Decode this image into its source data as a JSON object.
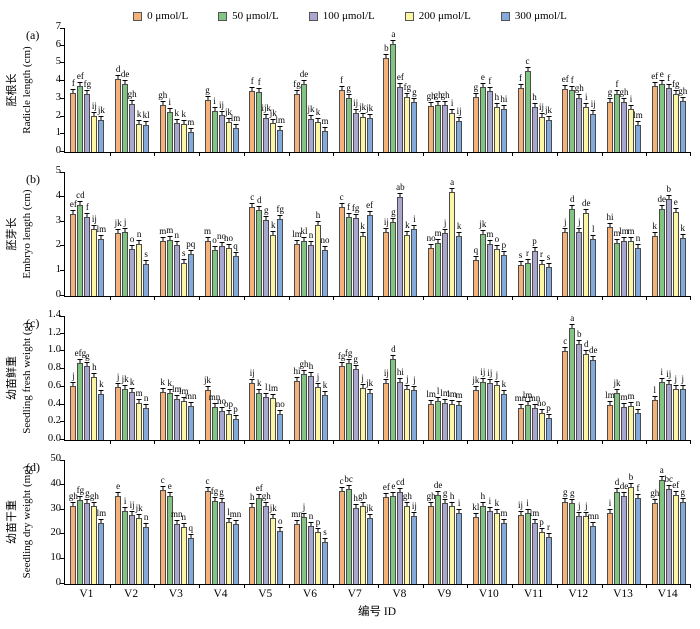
{
  "legend": {
    "items": [
      {
        "label": "0 μmol/L",
        "color": "#F4B27A"
      },
      {
        "label": "50 μmol/L",
        "color": "#82C482"
      },
      {
        "label": "100 μmol/L",
        "color": "#A9A6D0"
      },
      {
        "label": "200 μmol/L",
        "color": "#FBF6A4"
      },
      {
        "label": "300 μmol/L",
        "color": "#84A9DB"
      }
    ]
  },
  "x_axis": {
    "label": "编号 ID",
    "categories": [
      "V1",
      "V2",
      "V3",
      "V4",
      "V5",
      "V6",
      "V7",
      "V8",
      "V9",
      "V10",
      "V11",
      "V12",
      "V13",
      "V14"
    ]
  },
  "chart_data": [
    {
      "type": "bar",
      "tag": "(a)",
      "ylabel_cn": "胚根长",
      "ylabel_en": "Radicle length (cm)",
      "ylim": [
        0,
        7
      ],
      "ytick_step": 1,
      "ydecimals": 0,
      "categories": [
        "V1",
        "V2",
        "V3",
        "V4",
        "V5",
        "V6",
        "V7",
        "V8",
        "V9",
        "V10",
        "V11",
        "V12",
        "V13",
        "V14"
      ],
      "series": [
        {
          "name": "0 μmol/L",
          "values": [
            3.35,
            4.1,
            2.65,
            2.95,
            3.45,
            3.3,
            3.5,
            5.3,
            2.6,
            3.1,
            3.6,
            3.55,
            2.8,
            3.7
          ],
          "letters": [
            "f",
            "d",
            "gh",
            "g",
            "f",
            "fg",
            "f",
            "b",
            "gh",
            "g",
            "f",
            "ef",
            "g",
            "ef"
          ]
        },
        {
          "name": "50 μmol/L",
          "values": [
            3.75,
            3.85,
            2.25,
            2.3,
            3.4,
            3.85,
            3.05,
            6.1,
            2.65,
            3.65,
            4.55,
            3.5,
            3.3,
            3.85
          ],
          "letters": [
            "ef",
            "de",
            "i",
            "i",
            "f",
            "de",
            "g",
            "a",
            "gh",
            "e",
            "c",
            "f",
            "f",
            "e"
          ]
        },
        {
          "name": "100 μmol/L",
          "values": [
            3.25,
            2.7,
            1.65,
            2.1,
            1.9,
            1.85,
            2.2,
            3.65,
            2.65,
            3.45,
            2.55,
            3.05,
            2.8,
            3.6
          ],
          "letters": [
            "fg",
            "gh",
            "k",
            "ij",
            "ijk",
            "jk",
            "ij",
            "ef",
            "gh",
            "f",
            "h",
            "gh",
            "gh",
            "f"
          ]
        },
        {
          "name": "200 μmol/L",
          "values": [
            2.05,
            1.6,
            1.6,
            1.7,
            1.65,
            1.7,
            1.95,
            3.1,
            2.2,
            2.55,
            2.0,
            2.55,
            2.45,
            3.3
          ],
          "letters": [
            "ij",
            "k",
            "k",
            "jk",
            "jk",
            "k",
            "jk",
            "fg",
            "i",
            "h",
            "ij",
            "i",
            "i",
            "fg"
          ]
        },
        {
          "name": "300 μmol/L",
          "values": [
            1.8,
            1.5,
            1.15,
            1.35,
            1.25,
            1.2,
            1.9,
            2.85,
            1.75,
            2.45,
            1.8,
            2.15,
            1.5,
            2.9
          ],
          "letters": [
            "jk",
            "kl",
            "m",
            "lm",
            "lm",
            "m",
            "jk",
            "g",
            "ij",
            "hi",
            "jk",
            "ij",
            "lm",
            "gh"
          ]
        }
      ]
    },
    {
      "type": "bar",
      "tag": "(b)",
      "ylabel_cn": "胚芽长",
      "ylabel_en": "Embryo length (cm)",
      "ylim": [
        0,
        5
      ],
      "ytick_step": 1,
      "ydecimals": 0,
      "categories": [
        "V1",
        "V2",
        "V3",
        "V4",
        "V5",
        "V6",
        "V7",
        "V8",
        "V9",
        "V10",
        "V11",
        "V12",
        "V13",
        "V14"
      ],
      "series": [
        {
          "name": "0 μmol/L",
          "values": [
            3.3,
            2.55,
            2.2,
            2.2,
            3.6,
            2.1,
            3.6,
            2.6,
            1.95,
            1.45,
            1.25,
            2.6,
            2.8,
            2.4
          ],
          "letters": [
            "ef",
            "jk",
            "m",
            "m",
            "c",
            "lm",
            "c",
            "ij",
            "no",
            "q",
            "s",
            "j",
            "hi",
            "k"
          ]
        },
        {
          "name": "50 μmol/L",
          "values": [
            3.65,
            2.6,
            2.25,
            1.85,
            3.45,
            2.2,
            3.2,
            3.0,
            2.15,
            2.5,
            1.35,
            3.5,
            2.15,
            3.5
          ],
          "letters": [
            "cd",
            "j",
            "m",
            "o",
            "d",
            "kl",
            "f",
            "g",
            "m",
            "jk",
            "r",
            "d",
            "m",
            "de"
          ]
        },
        {
          "name": "100 μmol/L",
          "values": [
            3.2,
            1.9,
            2.05,
            2.0,
            3.05,
            2.05,
            3.15,
            4.0,
            2.55,
            2.1,
            1.8,
            2.6,
            2.2,
            3.9
          ],
          "letters": [
            "f",
            "o",
            "n",
            "no",
            "g",
            "n",
            "fg",
            "ab",
            "j",
            "m",
            "p",
            "j",
            "lm",
            "b"
          ]
        },
        {
          "name": "200 μmol/L",
          "values": [
            2.7,
            2.1,
            1.35,
            1.95,
            2.45,
            2.85,
            2.4,
            2.45,
            4.2,
            1.9,
            1.3,
            3.35,
            2.2,
            3.4
          ],
          "letters": [
            "ij",
            "n",
            "s",
            "no",
            "k",
            "h",
            "k",
            "k",
            "a",
            "o",
            "r",
            "de",
            "m",
            "e"
          ]
        },
        {
          "name": "300 μmol/L",
          "values": [
            2.3,
            1.3,
            1.7,
            1.6,
            3.1,
            1.85,
            3.25,
            2.7,
            2.4,
            1.65,
            1.15,
            2.3,
            1.95,
            2.35
          ],
          "letters": [
            "lm",
            "s",
            "pq",
            "q",
            "fg",
            "no",
            "ef",
            "i",
            "k",
            "p",
            "s",
            "l",
            "n",
            "k"
          ]
        }
      ]
    },
    {
      "type": "bar",
      "tag": "(c)",
      "ylabel_cn": "幼苗鲜重",
      "ylabel_en": "Seedling fresh weight (g)",
      "ylim": [
        0,
        1.4
      ],
      "ytick_step": 0.2,
      "ydecimals": 1,
      "categories": [
        "V1",
        "V2",
        "V3",
        "V4",
        "V5",
        "V6",
        "V7",
        "V8",
        "V9",
        "V10",
        "V11",
        "V12",
        "V13",
        "V14"
      ],
      "series": [
        {
          "name": "0 μmol/L",
          "values": [
            0.61,
            0.6,
            0.545,
            0.57,
            0.64,
            0.67,
            0.84,
            0.64,
            0.41,
            0.56,
            0.36,
            1.0,
            0.4,
            0.45
          ],
          "letters": [
            "j",
            "j",
            "k",
            "jk",
            "ij",
            "hi",
            "fg",
            "ij",
            "lm",
            "jk",
            "mn",
            "c",
            "lm",
            "l"
          ]
        },
        {
          "name": "50 μmol/L",
          "values": [
            0.87,
            0.575,
            0.53,
            0.37,
            0.53,
            0.74,
            0.87,
            0.92,
            0.44,
            0.65,
            0.4,
            1.27,
            0.53,
            0.65
          ],
          "letters": [
            "efg",
            "jk",
            "k",
            "mn",
            "k",
            "gh",
            "fg",
            "d",
            "l",
            "ij",
            "lm",
            "a",
            "jk",
            "i"
          ]
        },
        {
          "name": "100 μmol/L",
          "values": [
            0.83,
            0.54,
            0.46,
            0.33,
            0.49,
            0.72,
            0.8,
            0.66,
            0.42,
            0.64,
            0.36,
            1.08,
            0.37,
            0.63
          ],
          "letters": [
            "g",
            "k",
            "lm",
            "no",
            "l",
            "h",
            "g",
            "hi",
            "lm",
            "ij",
            "mn",
            "b",
            "m",
            "ij"
          ]
        },
        {
          "name": "200 μmol/L",
          "values": [
            0.71,
            0.42,
            0.44,
            0.29,
            0.47,
            0.6,
            0.59,
            0.58,
            0.41,
            0.62,
            0.31,
            0.97,
            0.38,
            0.58
          ],
          "letters": [
            "h",
            "m",
            "lm",
            "op",
            "lm",
            "j",
            "j",
            "j",
            "lm",
            "j",
            "no",
            "d",
            "m",
            "j"
          ]
        },
        {
          "name": "300 μmol/L",
          "values": [
            0.52,
            0.36,
            0.38,
            0.24,
            0.29,
            0.51,
            0.53,
            0.57,
            0.4,
            0.52,
            0.25,
            0.9,
            0.31,
            0.58
          ],
          "letters": [
            "k",
            "n",
            "mn",
            "p",
            "no",
            "k",
            "jk",
            "j",
            "m",
            "k",
            "p",
            "de",
            "n",
            "j"
          ]
        }
      ]
    },
    {
      "type": "bar",
      "tag": "(d)",
      "ylabel_cn": "幼苗干重",
      "ylabel_en": "Seedling dry weight (mg)",
      "ylim": [
        0,
        50
      ],
      "ytick_step": 10,
      "ydecimals": 0,
      "categories": [
        "V1",
        "V2",
        "V3",
        "V4",
        "V5",
        "V6",
        "V7",
        "V8",
        "V9",
        "V10",
        "V11",
        "V12",
        "V13",
        "V14"
      ],
      "series": [
        {
          "name": "0 μmol/L",
          "values": [
            31.5,
            35.5,
            38,
            37.5,
            31,
            24,
            37.5,
            35,
            31.5,
            27,
            28,
            33,
            28.5,
            32.5
          ],
          "letters": [
            "gh",
            "e",
            "c",
            "c",
            "h",
            "mn",
            "c",
            "ef",
            "gh",
            "kl",
            "ij",
            "g",
            "i",
            "gh"
          ]
        },
        {
          "name": "50 μmol/L",
          "values": [
            34,
            29.5,
            35.5,
            33.5,
            34.5,
            27,
            38.5,
            35.5,
            36,
            31.5,
            28.5,
            32.5,
            37,
            42
          ],
          "letters": [
            "fg",
            "i",
            "e",
            "fg",
            "ef",
            "j",
            "bc",
            "e",
            "de",
            "h",
            "i",
            "g",
            "d",
            "a"
          ]
        },
        {
          "name": "100 μmol/L",
          "values": [
            32.5,
            28,
            24,
            33,
            31.5,
            23.5,
            30.5,
            37,
            32.5,
            29.5,
            24.5,
            27.5,
            35.5,
            38.5
          ],
          "letters": [
            "g",
            "ij",
            "mn",
            "g",
            "gh",
            "n",
            "h",
            "cd",
            "g",
            "i",
            "lm",
            "j",
            "de",
            "bc"
          ]
        },
        {
          "name": "200 μmol/L",
          "values": [
            31.5,
            26.5,
            23,
            25,
            26.5,
            21,
            31.5,
            31.5,
            31.5,
            28.5,
            21,
            27.5,
            39,
            36
          ],
          "letters": [
            "gh",
            "jk",
            "n",
            "l",
            "jk",
            "p",
            "gh",
            "gh",
            "h",
            "k",
            "p",
            "j",
            "b",
            "ef"
          ]
        },
        {
          "name": "300 μmol/L",
          "values": [
            24.5,
            23,
            18.5,
            24,
            21.5,
            17,
            26.5,
            27.5,
            28.5,
            24.5,
            19,
            23.5,
            34.5,
            33
          ],
          "letters": [
            "lm",
            "n",
            "q",
            "mn",
            "o",
            "s",
            "jk",
            "ij",
            "i",
            "m",
            "r",
            "mn",
            "f",
            "g"
          ]
        }
      ]
    }
  ]
}
